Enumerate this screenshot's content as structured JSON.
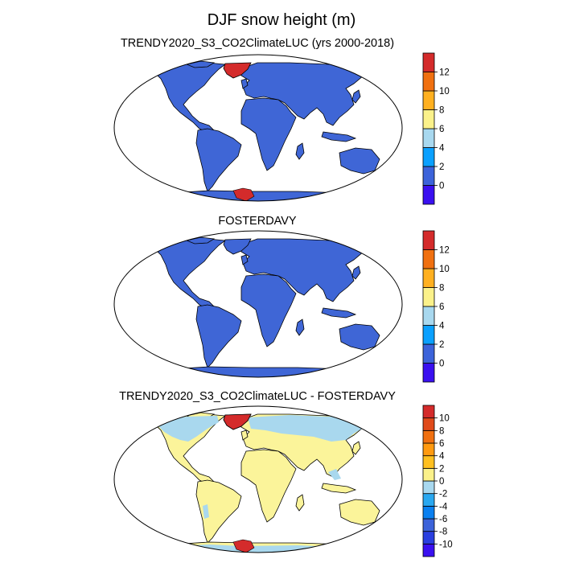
{
  "title": "DJF snow height (m)",
  "colors": {
    "land_base": "#3f66d6",
    "greenland": "#d42b2b",
    "diff_land": "#fbf49a",
    "diff_light": "#a9d8ee",
    "coast": "#000000"
  },
  "chart_data": [
    {
      "type": "heatmap",
      "title": "TRENDY2020_S3_CO2ClimateLUC (yrs 2000-2018)",
      "projection": "robinson",
      "colorbar": {
        "labels": [
          "0",
          "2",
          "4",
          "6",
          "8",
          "10",
          "12"
        ],
        "colors": [
          "#3a10f0",
          "#3c63da",
          "#0aa0ff",
          "#a8d8ef",
          "#fbf18a",
          "#ffb020",
          "#f07010",
          "#d42b2b"
        ]
      },
      "regions": [
        {
          "name": "land",
          "value": 2
        },
        {
          "name": "greenland",
          "value": 13
        },
        {
          "name": "antarctic-peninsula",
          "value": 13
        }
      ]
    },
    {
      "type": "heatmap",
      "title": "FOSTERDAVY",
      "projection": "robinson",
      "colorbar": {
        "labels": [
          "0",
          "2",
          "4",
          "6",
          "8",
          "10",
          "12"
        ],
        "colors": [
          "#3a10f0",
          "#3c63da",
          "#0aa0ff",
          "#a8d8ef",
          "#fbf18a",
          "#ffb020",
          "#f07010",
          "#d42b2b"
        ]
      },
      "regions": [
        {
          "name": "land",
          "value": 2
        }
      ]
    },
    {
      "type": "heatmap",
      "title": "TRENDY2020_S3_CO2ClimateLUC - FOSTERDAVY",
      "projection": "robinson",
      "colorbar": {
        "labels": [
          "-10",
          "-8",
          "-6",
          "-4",
          "-2",
          "0",
          "2",
          "4",
          "6",
          "8",
          "10"
        ],
        "colors": [
          "#3a10f0",
          "#2a3fe0",
          "#3c63da",
          "#0a80f0",
          "#2aa8f0",
          "#a8d8ef",
          "#fbf18a",
          "#ffc020",
          "#ff9a10",
          "#f07010",
          "#e04a1a",
          "#d42b2b"
        ]
      },
      "regions": [
        {
          "name": "land",
          "value": 1
        },
        {
          "name": "northern-high-latitudes",
          "value": -1
        },
        {
          "name": "greenland",
          "value": 11
        },
        {
          "name": "antarctic-peninsula",
          "value": 11
        }
      ]
    }
  ]
}
